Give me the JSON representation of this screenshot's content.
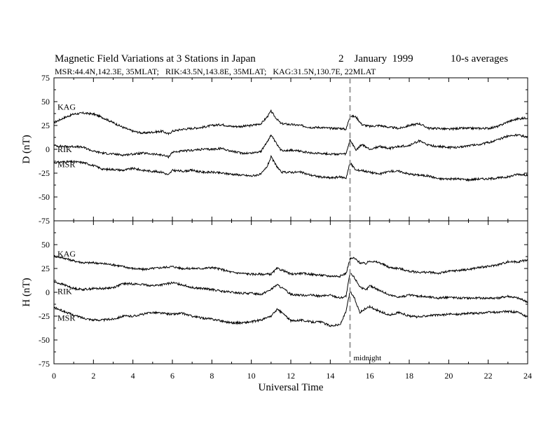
{
  "chart_data": {
    "type": "line",
    "title": "Magnetic Field Variations at 3 Stations in Japan",
    "date": "2    January  1999",
    "averaging": "10-s averages",
    "subtitle": "MSR:44.4N,142.3E, 35MLAT;   RIK:43.5N,143.8E, 35MLAT;   KAG:31.5N,130.7E, 22MLAT",
    "xlabel": "Universal Time",
    "xlim": [
      0,
      24
    ],
    "xticks": [
      "0",
      "2",
      "4",
      "6",
      "8",
      "10",
      "12",
      "14",
      "16",
      "18",
      "20",
      "22",
      "24"
    ],
    "marker": {
      "x": 15,
      "label": "midnight",
      "style": "dashed",
      "color": "#9a9a9a"
    },
    "panels": [
      {
        "ylabel": "D (nT)",
        "ylim": [
          -75,
          75
        ],
        "yticks": [
          "75",
          "50",
          "25",
          "0",
          "-25",
          "-50",
          "-75"
        ],
        "series": [
          {
            "name": "KAG",
            "x": [
              0,
              0.5,
              1,
              1.5,
              2,
              2.5,
              3,
              3.5,
              4,
              4.5,
              5,
              5.5,
              5.8,
              6,
              6.5,
              7,
              7.5,
              8,
              8.5,
              9,
              9.5,
              10,
              10.5,
              10.8,
              11,
              11.2,
              11.5,
              12,
              12.5,
              13,
              13.5,
              14,
              14.5,
              14.8,
              15,
              15.3,
              15.6,
              16,
              16.5,
              17,
              17.5,
              18,
              18.5,
              19,
              19.5,
              20,
              20.5,
              21,
              21.5,
              22,
              22.5,
              23,
              23.5,
              24
            ],
            "values": [
              28,
              33,
              37,
              38,
              37,
              33,
              28,
              23,
              19,
              17,
              18,
              19,
              16,
              19,
              21,
              22,
              23,
              25,
              26,
              24,
              24,
              25,
              27,
              34,
              40,
              34,
              27,
              26,
              25,
              23,
              23,
              22,
              22,
              21,
              35,
              34,
              26,
              24,
              25,
              23,
              22,
              25,
              27,
              22,
              22,
              21,
              22,
              22,
              22,
              22,
              24,
              29,
              32,
              33
            ]
          },
          {
            "name": "RIK",
            "x": [
              0,
              0.5,
              1,
              1.5,
              2,
              2.5,
              3,
              3.5,
              4,
              4.5,
              5,
              5.5,
              5.8,
              6,
              6.5,
              7,
              7.5,
              8,
              8.5,
              9,
              9.5,
              10,
              10.5,
              10.8,
              11,
              11.2,
              11.5,
              12,
              12.5,
              13,
              13.5,
              14,
              14.5,
              14.8,
              15,
              15.3,
              15.6,
              16,
              16.5,
              17,
              17.5,
              18,
              18.5,
              19,
              19.5,
              20,
              20.5,
              21,
              21.5,
              22,
              22.5,
              23,
              23.5,
              24
            ],
            "values": [
              4,
              3,
              3,
              2,
              -2,
              -4,
              -5,
              -6,
              -5,
              -4,
              -5,
              -6,
              -8,
              -3,
              -2,
              -1,
              0,
              0,
              1,
              -2,
              -4,
              -4,
              -2,
              8,
              15,
              8,
              -1,
              -1,
              -2,
              -4,
              -4,
              -5,
              -5,
              -5,
              10,
              -1,
              5,
              0,
              3,
              1,
              3,
              4,
              9,
              4,
              3,
              2,
              2,
              4,
              5,
              7,
              10,
              14,
              15,
              13
            ]
          },
          {
            "name": "MSR",
            "x": [
              0,
              0.5,
              1,
              1.5,
              2,
              2.5,
              3,
              3.5,
              4,
              4.5,
              5,
              5.5,
              5.8,
              6,
              6.5,
              7,
              7.5,
              8,
              8.5,
              9,
              9.5,
              10,
              10.5,
              10.8,
              11,
              11.2,
              11.5,
              12,
              12.5,
              13,
              13.5,
              14,
              14.5,
              14.8,
              15,
              15.3,
              15.6,
              16,
              16.5,
              17,
              17.5,
              18,
              18.5,
              19,
              19.5,
              20,
              20.5,
              21,
              21.5,
              22,
              22.5,
              23,
              23.5,
              24
            ],
            "values": [
              -14,
              -13,
              -13,
              -14,
              -17,
              -21,
              -21,
              -22,
              -20,
              -22,
              -23,
              -24,
              -27,
              -22,
              -23,
              -22,
              -24,
              -24,
              -25,
              -26,
              -27,
              -28,
              -26,
              -18,
              -8,
              -15,
              -24,
              -24,
              -24,
              -27,
              -29,
              -30,
              -29,
              -30,
              -14,
              -22,
              -22,
              -24,
              -26,
              -23,
              -23,
              -26,
              -27,
              -28,
              -31,
              -31,
              -31,
              -32,
              -31,
              -31,
              -30,
              -29,
              -26,
              -27
            ]
          }
        ]
      },
      {
        "ylabel": "H (nT)",
        "ylim": [
          -75,
          75
        ],
        "yticks": [
          "75",
          "50",
          "25",
          "0",
          "-25",
          "-50",
          "-75"
        ],
        "series": [
          {
            "name": "KAG",
            "x": [
              0,
              0.5,
              1,
              1.5,
              2,
              2.5,
              3,
              3.5,
              4,
              4.5,
              5,
              5.5,
              6,
              6.5,
              7,
              7.5,
              8,
              8.5,
              9,
              9.5,
              10,
              10.5,
              11,
              11.3,
              11.6,
              12,
              12.5,
              13,
              13.5,
              14,
              14.5,
              14.8,
              15,
              15.2,
              15.5,
              15.8,
              16,
              16.5,
              17,
              17.5,
              18,
              18.5,
              19,
              19.5,
              20,
              20.5,
              21,
              21.5,
              22,
              22.5,
              23,
              23.5,
              24
            ],
            "values": [
              38,
              36,
              33,
              31,
              31,
              30,
              29,
              27,
              25,
              24,
              25,
              26,
              27,
              25,
              25,
              25,
              26,
              24,
              21,
              20,
              19,
              19,
              19,
              25,
              23,
              19,
              20,
              19,
              18,
              17,
              17,
              20,
              35,
              36,
              31,
              30,
              33,
              31,
              26,
              25,
              22,
              21,
              21,
              20,
              22,
              23,
              24,
              26,
              27,
              29,
              32,
              32,
              34
            ]
          },
          {
            "name": "RIK",
            "x": [
              0,
              0.5,
              1,
              1.5,
              2,
              2.5,
              3,
              3.5,
              4,
              4.5,
              5,
              5.5,
              6,
              6.5,
              7,
              7.5,
              8,
              8.5,
              9,
              9.5,
              10,
              10.5,
              11,
              11.3,
              11.6,
              12,
              12.5,
              13,
              13.5,
              14,
              14.5,
              14.8,
              15,
              15.2,
              15.5,
              15.8,
              16,
              16.5,
              17,
              17.5,
              18,
              18.5,
              19,
              19.5,
              20,
              20.5,
              21,
              21.5,
              22,
              22.5,
              23,
              23.5,
              24
            ],
            "values": [
              11,
              8,
              4,
              3,
              4,
              4,
              5,
              9,
              9,
              8,
              7,
              8,
              10,
              8,
              5,
              4,
              3,
              1,
              0,
              -1,
              -1,
              -2,
              3,
              8,
              4,
              -2,
              -3,
              -3,
              -4,
              -3,
              -6,
              -4,
              20,
              16,
              6,
              2,
              7,
              2,
              -3,
              -5,
              -3,
              -4,
              -5,
              -6,
              -5,
              -6,
              -6,
              -6,
              -6,
              -6,
              -4,
              -6,
              -10
            ]
          },
          {
            "name": "MSR",
            "x": [
              0,
              0.5,
              1,
              1.5,
              2,
              2.5,
              3,
              3.5,
              4,
              4.5,
              5,
              5.5,
              6,
              6.5,
              7,
              7.5,
              8,
              8.5,
              9,
              9.5,
              10,
              10.5,
              11,
              11.3,
              11.6,
              12,
              12.5,
              13,
              13.5,
              14,
              14.5,
              14.8,
              15,
              15.2,
              15.5,
              15.8,
              16,
              16.5,
              17,
              17.5,
              18,
              18.5,
              19,
              19.5,
              20,
              20.5,
              21,
              21.5,
              22,
              22.5,
              23,
              23.5,
              24
            ],
            "values": [
              -16,
              -20,
              -24,
              -27,
              -29,
              -29,
              -28,
              -25,
              -25,
              -23,
              -21,
              -22,
              -23,
              -22,
              -25,
              -27,
              -28,
              -30,
              -32,
              -32,
              -31,
              -29,
              -25,
              -18,
              -22,
              -30,
              -29,
              -31,
              -31,
              -35,
              -34,
              -20,
              1,
              -5,
              -21,
              -17,
              -15,
              -20,
              -24,
              -21,
              -25,
              -26,
              -24,
              -24,
              -23,
              -23,
              -22,
              -22,
              -21,
              -21,
              -20,
              -21,
              -26
            ]
          }
        ]
      }
    ]
  }
}
